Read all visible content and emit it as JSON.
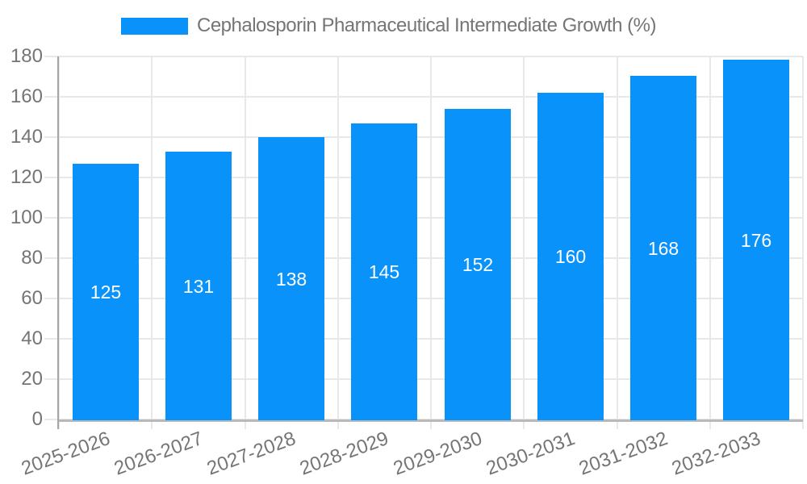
{
  "legend": {
    "label": "Cephalosporin Pharmaceutical Intermediate Growth (%)"
  },
  "chart_data": {
    "type": "bar",
    "title": "Cephalosporin Pharmaceutical Intermediate Growth (%)",
    "categories": [
      "2025-2026",
      "2026-2027",
      "2027-2028",
      "2028-2029",
      "2029-2030",
      "2030-2031",
      "2031-2032",
      "2032-2033"
    ],
    "values": [
      125,
      131,
      138,
      145,
      152,
      160,
      168,
      176
    ],
    "xlabel": "",
    "ylabel": "",
    "ylim": [
      0,
      180
    ],
    "yticks": [
      0,
      20,
      40,
      60,
      80,
      100,
      120,
      140,
      160,
      180
    ],
    "grid": true,
    "legend_position": "top",
    "value_labels": "inside-middle",
    "colors": {
      "bar": "#0992fa",
      "value_label": "#ffffff",
      "axis_text": "#757575",
      "gridline": "#e8e8e8",
      "y_axis_line": "#a6a6a6",
      "baseline": "#b9b9b9"
    }
  }
}
